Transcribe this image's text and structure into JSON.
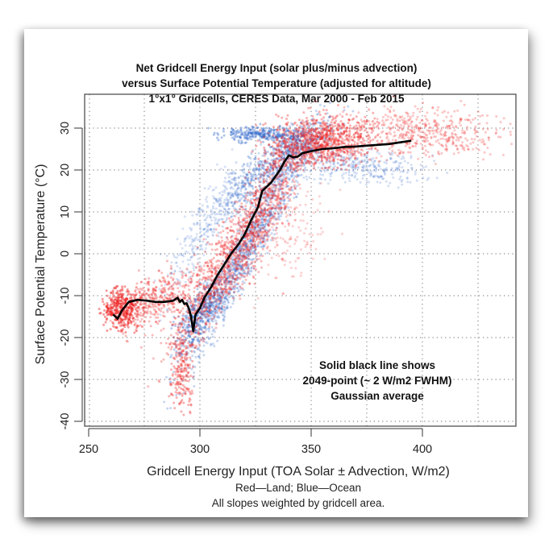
{
  "chart_data": {
    "type": "scatter",
    "title": [
      "Net Gridcell Energy Input (solar plus/minus advection)",
      "versus Surface Potential Temperature (adjusted for altitude)",
      "1°x1° Gridcells, CERES Data, Mar 2000 - Feb 2015"
    ],
    "xlabel": "Gridcell Energy Input (TOA Solar ± Advection, W/m2)",
    "ylabel": "Surface Potential Temperature (°C)",
    "caption": [
      "Red—Land; Blue—Ocean",
      "All slopes weighted by gridcell area."
    ],
    "annotation": [
      "Solid black line shows",
      "2049-point (~ 2 W/m2 FWHM)",
      "Gaussian average"
    ],
    "xlim": [
      248,
      442
    ],
    "ylim": [
      -41,
      37
    ],
    "xticks": [
      250,
      300,
      350,
      400
    ],
    "yticks": [
      30,
      20,
      10,
      0,
      -10,
      -20,
      -30,
      -40
    ],
    "xgrid": [
      275,
      300,
      325,
      350,
      375,
      400,
      425
    ],
    "ygrid": [
      30,
      20,
      10,
      0,
      -10,
      -20,
      -30,
      -40
    ],
    "grid": true,
    "series": [
      {
        "name": "Land",
        "color": "#ee2020",
        "kind": "scatter"
      },
      {
        "name": "Ocean",
        "color": "#3a6fcc",
        "kind": "scatter"
      },
      {
        "name": "Gaussian average",
        "color": "#000000",
        "kind": "line",
        "x": [
          261,
          263,
          265,
          268,
          272,
          276,
          280,
          284,
          288,
          290,
          291,
          292,
          293,
          294,
          295,
          296,
          297,
          298,
          300,
          302,
          305,
          308,
          311,
          314,
          317,
          320,
          323,
          326,
          328,
          330,
          332,
          334,
          336,
          338,
          340,
          342,
          344,
          346,
          350,
          355,
          360,
          365,
          370,
          375,
          380,
          385,
          390,
          395
        ],
        "y": [
          -14.5,
          -15.5,
          -13.5,
          -11.5,
          -11,
          -11.2,
          -11.5,
          -11.5,
          -11.2,
          -10.5,
          -11.5,
          -11,
          -12,
          -11.8,
          -13,
          -15,
          -18.5,
          -14.5,
          -13,
          -10.5,
          -8,
          -5,
          -2.5,
          0,
          2,
          4.5,
          8,
          11,
          15,
          16,
          17,
          18.5,
          20,
          22,
          23.5,
          23,
          23.2,
          24,
          24.5,
          25,
          25.2,
          25.5,
          25.6,
          25.8,
          26,
          26.2,
          26.6,
          27
        ]
      }
    ]
  }
}
